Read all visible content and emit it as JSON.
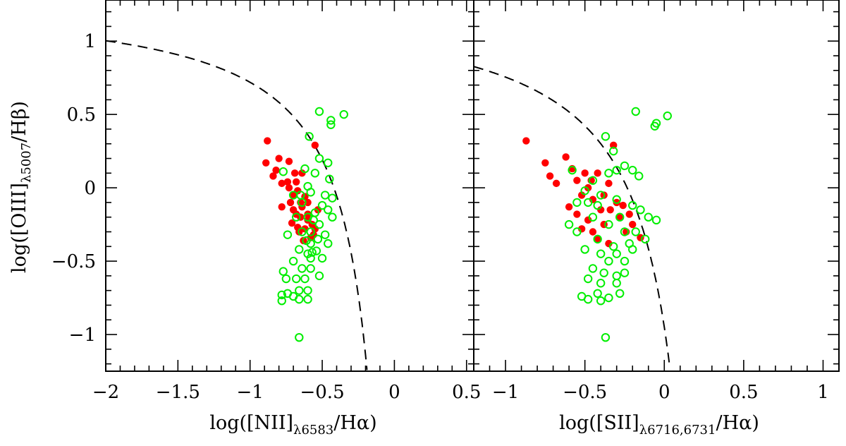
{
  "chart_data": [
    {
      "type": "scatter",
      "panel": "left",
      "xlim": [
        -2.0,
        0.55
      ],
      "ylim": [
        -1.25,
        1.28
      ],
      "xticks": [
        -2,
        -1.5,
        -1,
        -0.5,
        0,
        0.5
      ],
      "xtick_labels": [
        "−2",
        "−1.5",
        "−1",
        "−0.5",
        "0",
        "0.5"
      ],
      "yticks": [
        1,
        0.5,
        0,
        -0.5,
        -1
      ],
      "ytick_labels": [
        "1",
        "0.5",
        "0",
        "−0.5",
        "−1"
      ],
      "xlabel": {
        "pre": "log([NII]",
        "sub": "λ6583",
        "post": "/Hα)"
      },
      "ylabel": {
        "pre": "log([OIII]",
        "sub": "λ5007",
        "post": "/Hβ)"
      },
      "curve": {
        "style": "dashed",
        "formula": "y = 0.61/(x-0.05) + 1.3"
      },
      "series": [
        {
          "marker": "filled-circle",
          "color": "#ff0000",
          "points": [
            [
              -0.88,
              0.32
            ],
            [
              -0.89,
              0.17
            ],
            [
              -0.84,
              0.08
            ],
            [
              -0.8,
              0.2
            ],
            [
              -0.78,
              0.03
            ],
            [
              -0.82,
              0.12
            ],
            [
              -0.73,
              0.18
            ],
            [
              -0.69,
              0.1
            ],
            [
              -0.73,
              0.0
            ],
            [
              -0.7,
              -0.05
            ],
            [
              -0.68,
              0.04
            ],
            [
              -0.65,
              -0.1
            ],
            [
              -0.7,
              -0.15
            ],
            [
              -0.65,
              -0.2
            ],
            [
              -0.62,
              -0.28
            ],
            [
              -0.66,
              -0.3
            ],
            [
              -0.6,
              -0.18
            ],
            [
              -0.57,
              -0.25
            ],
            [
              -0.62,
              -0.06
            ],
            [
              -0.71,
              -0.24
            ],
            [
              -0.67,
              -0.27
            ],
            [
              -0.63,
              -0.36
            ],
            [
              -0.58,
              -0.34
            ],
            [
              -0.55,
              -0.28
            ],
            [
              -0.55,
              0.29
            ],
            [
              -0.78,
              -0.13
            ],
            [
              -0.68,
              -0.18
            ],
            [
              -0.64,
              -0.13
            ],
            [
              -0.74,
              0.04
            ],
            [
              -0.6,
              -0.22
            ],
            [
              -0.67,
              -0.02
            ],
            [
              -0.64,
              0.1
            ],
            [
              -0.72,
              -0.1
            ],
            [
              -0.6,
              -0.1
            ],
            [
              -0.53,
              -0.15
            ],
            [
              -0.56,
              -0.32
            ]
          ]
        },
        {
          "marker": "open-circle",
          "color": "#00ee00",
          "points": [
            [
              -0.52,
              0.52
            ],
            [
              -0.44,
              0.46
            ],
            [
              -0.44,
              0.43
            ],
            [
              -0.35,
              0.5
            ],
            [
              -0.59,
              0.35
            ],
            [
              -0.52,
              0.2
            ],
            [
              -0.46,
              0.17
            ],
            [
              -0.55,
              0.1
            ],
            [
              -0.45,
              0.06
            ],
            [
              -0.62,
              0.13
            ],
            [
              -0.6,
              0.01
            ],
            [
              -0.77,
              0.11
            ],
            [
              -0.58,
              -0.03
            ],
            [
              -0.48,
              -0.05
            ],
            [
              -0.43,
              -0.07
            ],
            [
              -0.5,
              -0.12
            ],
            [
              -0.64,
              -0.1
            ],
            [
              -0.7,
              -0.05
            ],
            [
              -0.55,
              -0.17
            ],
            [
              -0.46,
              -0.15
            ],
            [
              -0.43,
              -0.2
            ],
            [
              -0.6,
              -0.2
            ],
            [
              -0.64,
              -0.3
            ],
            [
              -0.52,
              -0.25
            ],
            [
              -0.48,
              -0.32
            ],
            [
              -0.58,
              -0.38
            ],
            [
              -0.46,
              -0.38
            ],
            [
              -0.74,
              -0.32
            ],
            [
              -0.66,
              -0.42
            ],
            [
              -0.6,
              -0.45
            ],
            [
              -0.54,
              -0.43
            ],
            [
              -0.5,
              -0.48
            ],
            [
              -0.7,
              -0.5
            ],
            [
              -0.64,
              -0.55
            ],
            [
              -0.58,
              -0.55
            ],
            [
              -0.68,
              -0.62
            ],
            [
              -0.62,
              -0.62
            ],
            [
              -0.77,
              -0.57
            ],
            [
              -0.75,
              -0.62
            ],
            [
              -0.66,
              -0.7
            ],
            [
              -0.6,
              -0.7
            ],
            [
              -0.7,
              -0.74
            ],
            [
              -0.66,
              -0.76
            ],
            [
              -0.6,
              -0.76
            ],
            [
              -0.78,
              -0.73
            ],
            [
              -0.78,
              -0.77
            ],
            [
              -0.74,
              -0.72
            ],
            [
              -0.66,
              -1.02
            ],
            [
              -0.58,
              -0.3
            ],
            [
              -0.56,
              -0.22
            ],
            [
              -0.53,
              -0.35
            ],
            [
              -0.57,
              -0.44
            ],
            [
              -0.52,
              -0.6
            ],
            [
              -0.58,
              -0.48
            ],
            [
              -0.61,
              -0.36
            ],
            [
              -0.68,
              -0.2
            ],
            [
              -0.65,
              -0.05
            ]
          ]
        }
      ]
    },
    {
      "type": "scatter",
      "panel": "right",
      "xlim": [
        -1.2,
        1.1
      ],
      "ylim": [
        -1.25,
        1.28
      ],
      "xticks": [
        -1,
        -0.5,
        0,
        0.5,
        1
      ],
      "xtick_labels": [
        "−1",
        "−0.5",
        "0",
        "0.5",
        "1"
      ],
      "yticks": [
        1,
        0.5,
        0,
        -0.5,
        -1
      ],
      "xlabel": {
        "pre": "log([SII]",
        "sub": "λ6716,6731",
        "post": "/Hα)"
      },
      "curve": {
        "style": "dashed",
        "formula": "y = 0.72/(x-0.32) + 1.3"
      },
      "series": [
        {
          "marker": "filled-circle",
          "color": "#ff0000",
          "points": [
            [
              -0.87,
              0.32
            ],
            [
              -0.75,
              0.17
            ],
            [
              -0.72,
              0.08
            ],
            [
              -0.68,
              0.03
            ],
            [
              -0.62,
              0.21
            ],
            [
              -0.58,
              0.13
            ],
            [
              -0.55,
              0.05
            ],
            [
              -0.52,
              -0.05
            ],
            [
              -0.5,
              0.1
            ],
            [
              -0.48,
              0.0
            ],
            [
              -0.45,
              -0.08
            ],
            [
              -0.42,
              0.1
            ],
            [
              -0.4,
              -0.15
            ],
            [
              -0.38,
              -0.05
            ],
            [
              -0.35,
              0.03
            ],
            [
              -0.32,
              0.29
            ],
            [
              -0.3,
              -0.1
            ],
            [
              -0.28,
              -0.2
            ],
            [
              -0.26,
              -0.12
            ],
            [
              -0.22,
              -0.18
            ],
            [
              -0.2,
              -0.25
            ],
            [
              -0.15,
              -0.34
            ],
            [
              -0.55,
              -0.18
            ],
            [
              -0.52,
              -0.28
            ],
            [
              -0.48,
              -0.22
            ],
            [
              -0.45,
              -0.3
            ],
            [
              -0.42,
              -0.35
            ],
            [
              -0.38,
              -0.25
            ],
            [
              -0.35,
              -0.38
            ],
            [
              -0.6,
              -0.13
            ],
            [
              -0.46,
              0.05
            ],
            [
              -0.34,
              -0.15
            ],
            [
              -0.24,
              -0.3
            ]
          ]
        },
        {
          "marker": "open-circle",
          "color": "#00ee00",
          "points": [
            [
              -0.18,
              0.52
            ],
            [
              -0.05,
              0.44
            ],
            [
              -0.06,
              0.42
            ],
            [
              0.02,
              0.49
            ],
            [
              -0.37,
              0.35
            ],
            [
              -0.32,
              0.25
            ],
            [
              -0.25,
              0.15
            ],
            [
              -0.2,
              0.12
            ],
            [
              -0.16,
              0.08
            ],
            [
              -0.3,
              0.12
            ],
            [
              -0.35,
              0.1
            ],
            [
              -0.45,
              0.05
            ],
            [
              -0.5,
              -0.02
            ],
            [
              -0.58,
              0.12
            ],
            [
              -0.55,
              -0.1
            ],
            [
              -0.4,
              -0.05
            ],
            [
              -0.3,
              -0.08
            ],
            [
              -0.2,
              -0.12
            ],
            [
              -0.15,
              -0.15
            ],
            [
              -0.1,
              -0.2
            ],
            [
              -0.05,
              -0.22
            ],
            [
              -0.45,
              -0.2
            ],
            [
              -0.35,
              -0.25
            ],
            [
              -0.25,
              -0.3
            ],
            [
              -0.42,
              -0.35
            ],
            [
              -0.32,
              -0.4
            ],
            [
              -0.22,
              -0.38
            ],
            [
              -0.5,
              -0.42
            ],
            [
              -0.4,
              -0.45
            ],
            [
              -0.3,
              -0.45
            ],
            [
              -0.2,
              -0.42
            ],
            [
              -0.45,
              -0.55
            ],
            [
              -0.38,
              -0.58
            ],
            [
              -0.3,
              -0.6
            ],
            [
              -0.48,
              -0.62
            ],
            [
              -0.4,
              -0.65
            ],
            [
              -0.3,
              -0.65
            ],
            [
              -0.25,
              -0.58
            ],
            [
              -0.42,
              -0.72
            ],
            [
              -0.35,
              -0.75
            ],
            [
              -0.28,
              -0.72
            ],
            [
              -0.48,
              -0.76
            ],
            [
              -0.4,
              -0.77
            ],
            [
              -0.52,
              -0.74
            ],
            [
              -0.37,
              -1.02
            ],
            [
              -0.55,
              -0.3
            ],
            [
              -0.48,
              -0.1
            ],
            [
              -0.6,
              -0.25
            ],
            [
              -0.35,
              -0.5
            ],
            [
              -0.25,
              -0.5
            ],
            [
              -0.18,
              -0.3
            ],
            [
              -0.12,
              -0.35
            ],
            [
              -0.42,
              -0.12
            ],
            [
              -0.28,
              -0.2
            ]
          ]
        }
      ]
    }
  ]
}
